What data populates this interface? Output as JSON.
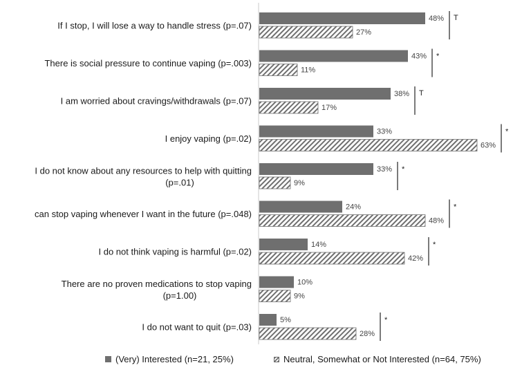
{
  "chart_data": {
    "type": "bar",
    "orientation": "horizontal",
    "categories": [
      [
        "If I stop, I will lose a way to handle stress (p=.07)"
      ],
      [
        "There is social pressure to continue vaping (p=.003)"
      ],
      [
        "I am worried about cravings/withdrawals (p=.07)"
      ],
      [
        "I enjoy vaping (p=.02)"
      ],
      [
        "I do not know about any resources to help with quitting",
        "(p=.01)"
      ],
      [
        "can stop vaping whenever I want in the future (p=.048)"
      ],
      [
        "I do not think vaping is harmful (p=.02)"
      ],
      [
        "There are no proven medications to stop vaping",
        "(p=1.00)"
      ],
      [
        "I do not want to quit (p=.03)"
      ]
    ],
    "series": [
      {
        "name": "(Very) Interested (n=21, 25%)",
        "style": "solid",
        "color": "#6f6f6f",
        "values": [
          48,
          43,
          38,
          33,
          33,
          24,
          14,
          10,
          5
        ],
        "labels": [
          "48%",
          "43%",
          "38%",
          "33%",
          "33%",
          "24%",
          "14%",
          "10%",
          "5%"
        ]
      },
      {
        "name": "Neutral, Somewhat or Not Interested (n=64, 75%)",
        "style": "hatched",
        "color": "#6f6f6f",
        "values": [
          27,
          11,
          17,
          63,
          9,
          48,
          42,
          9,
          28
        ],
        "labels": [
          "27%",
          "11%",
          "17%",
          "63%",
          "9%",
          "48%",
          "42%",
          "9%",
          "28%"
        ]
      }
    ],
    "significance_marks": [
      "T",
      "*",
      "T",
      "*",
      "*",
      "*",
      "*",
      "",
      "*"
    ],
    "xlim": [
      0,
      70
    ],
    "grid": false,
    "legend_position": "bottom"
  }
}
